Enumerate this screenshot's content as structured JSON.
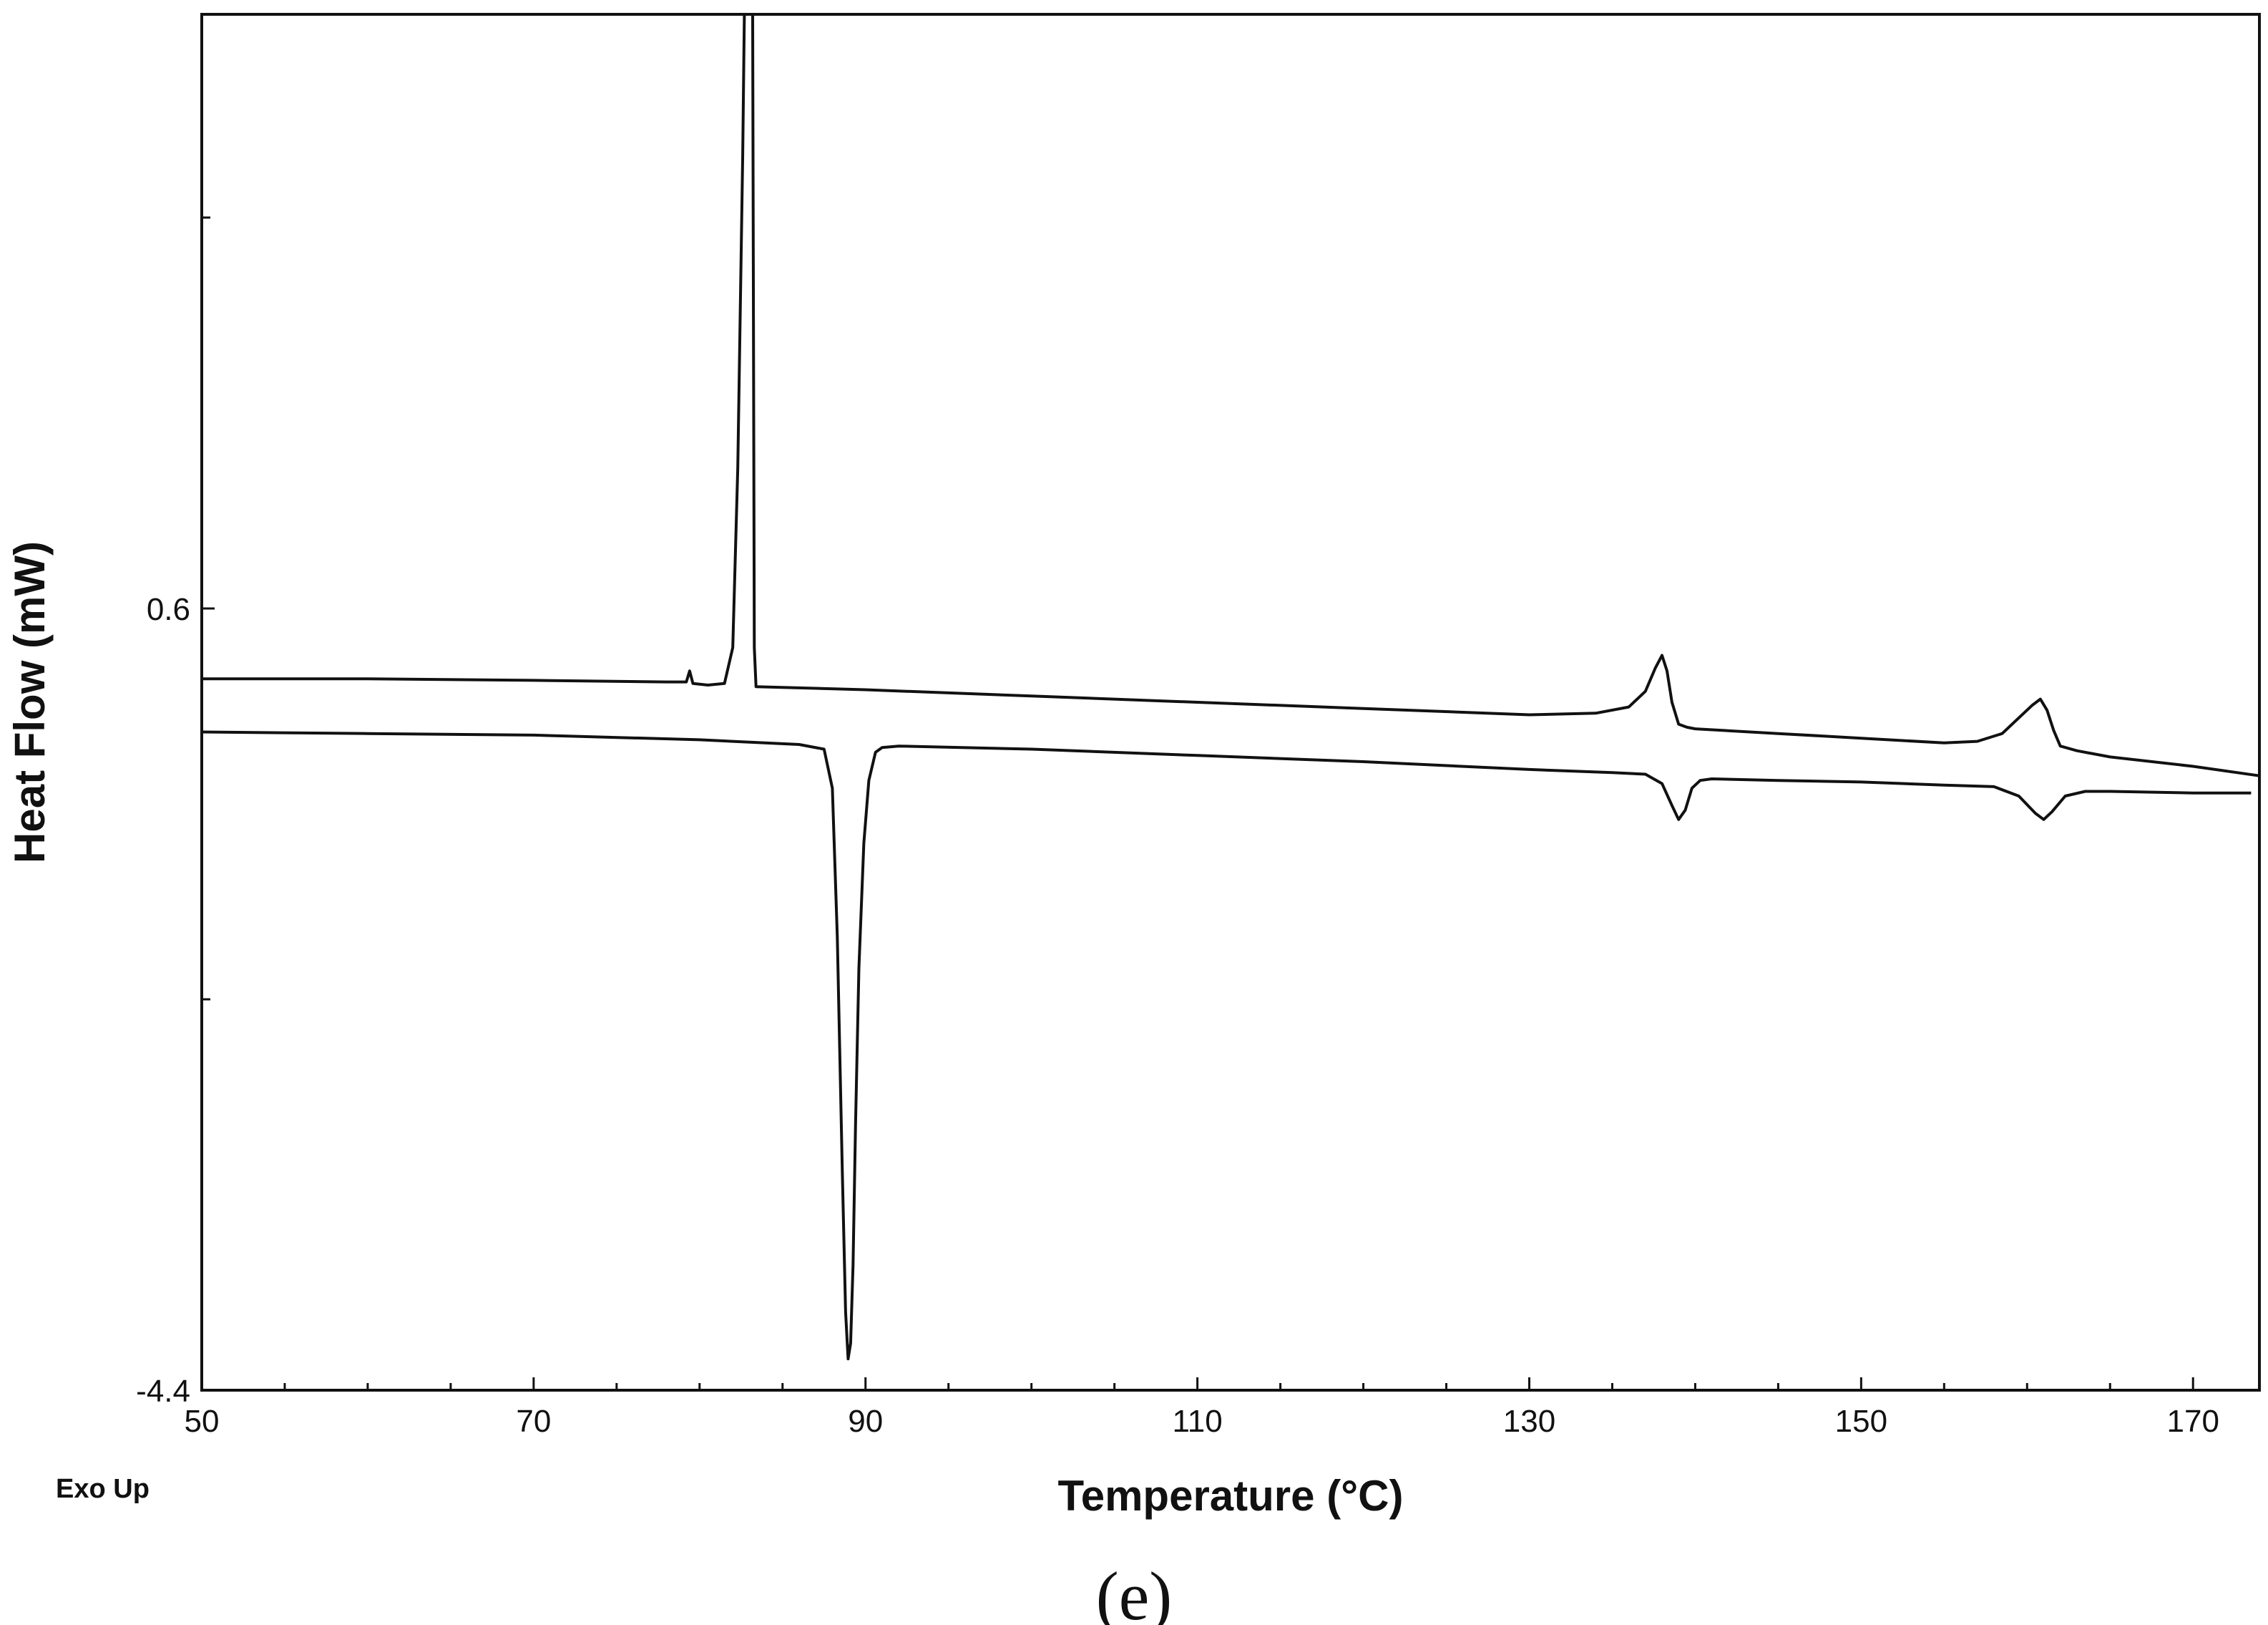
{
  "chart_data": {
    "type": "line",
    "xlabel": "Temperature (°C)",
    "ylabel": "Heat Flow (mW)",
    "xlim": [
      50,
      174
    ],
    "ylim": [
      -4.4,
      4.4
    ],
    "x_ticks": [
      50,
      70,
      90,
      110,
      130,
      150,
      170
    ],
    "y_ticks": [
      0.6,
      -4.4
    ],
    "y_minor_ticks": [
      3.1,
      -1.9
    ],
    "grid": false,
    "legend": "none",
    "annotation": "Exo Up",
    "caption": "(e)",
    "line_color": "#111111",
    "series": [
      {
        "x": [
          50,
          60,
          70,
          78,
          79.2,
          79.4,
          79.6,
          80.5,
          81.5,
          82,
          82.3,
          82.6,
          82.7,
          82.8,
          82.85,
          82.9,
          83.0,
          83.1,
          83.2,
          83.3,
          83.4,
          90,
          100,
          110,
          120,
          130,
          134,
          136,
          137,
          137.6,
          138.0,
          138.3,
          138.6,
          139,
          139.5,
          140,
          145,
          150,
          155,
          157,
          158.5,
          159.5,
          160.3,
          160.8,
          161.2,
          161.6,
          162,
          163,
          165,
          170,
          174
        ],
        "values": [
          0.15,
          0.15,
          0.14,
          0.13,
          0.13,
          0.2,
          0.12,
          0.11,
          0.12,
          0.35,
          1.5,
          3.5,
          4.4,
          4.4,
          4.4,
          4.4,
          4.4,
          4.4,
          4.4,
          0.35,
          0.1,
          0.08,
          0.04,
          0.0,
          -0.04,
          -0.08,
          -0.07,
          -0.03,
          0.07,
          0.22,
          0.3,
          0.2,
          0.0,
          -0.14,
          -0.16,
          -0.17,
          -0.2,
          -0.23,
          -0.26,
          -0.25,
          -0.2,
          -0.1,
          -0.02,
          0.02,
          -0.05,
          -0.18,
          -0.28,
          -0.31,
          -0.35,
          -0.41,
          -0.47
        ]
      },
      {
        "x": [
          50,
          60,
          70,
          80,
          86,
          87.5,
          88.0,
          88.3,
          88.6,
          88.8,
          88.95,
          89.1,
          89.25,
          89.4,
          89.6,
          89.9,
          90.2,
          90.6,
          91,
          92,
          100,
          110,
          120,
          130,
          135,
          137,
          138,
          138.6,
          139,
          139.4,
          139.8,
          140.3,
          141,
          145,
          150,
          155,
          158,
          159.5,
          160.5,
          161,
          161.5,
          162.3,
          163.5,
          165,
          170,
          173.5
        ],
        "values": [
          -0.19,
          -0.2,
          -0.21,
          -0.24,
          -0.27,
          -0.3,
          -0.55,
          -1.5,
          -3.0,
          -3.9,
          -4.2,
          -4.1,
          -3.6,
          -2.7,
          -1.7,
          -0.9,
          -0.5,
          -0.32,
          -0.29,
          -0.28,
          -0.3,
          -0.34,
          -0.38,
          -0.43,
          -0.45,
          -0.46,
          -0.52,
          -0.66,
          -0.75,
          -0.69,
          -0.55,
          -0.5,
          -0.49,
          -0.5,
          -0.51,
          -0.53,
          -0.54,
          -0.6,
          -0.71,
          -0.75,
          -0.7,
          -0.6,
          -0.57,
          -0.57,
          -0.58,
          -0.58
        ]
      }
    ]
  }
}
